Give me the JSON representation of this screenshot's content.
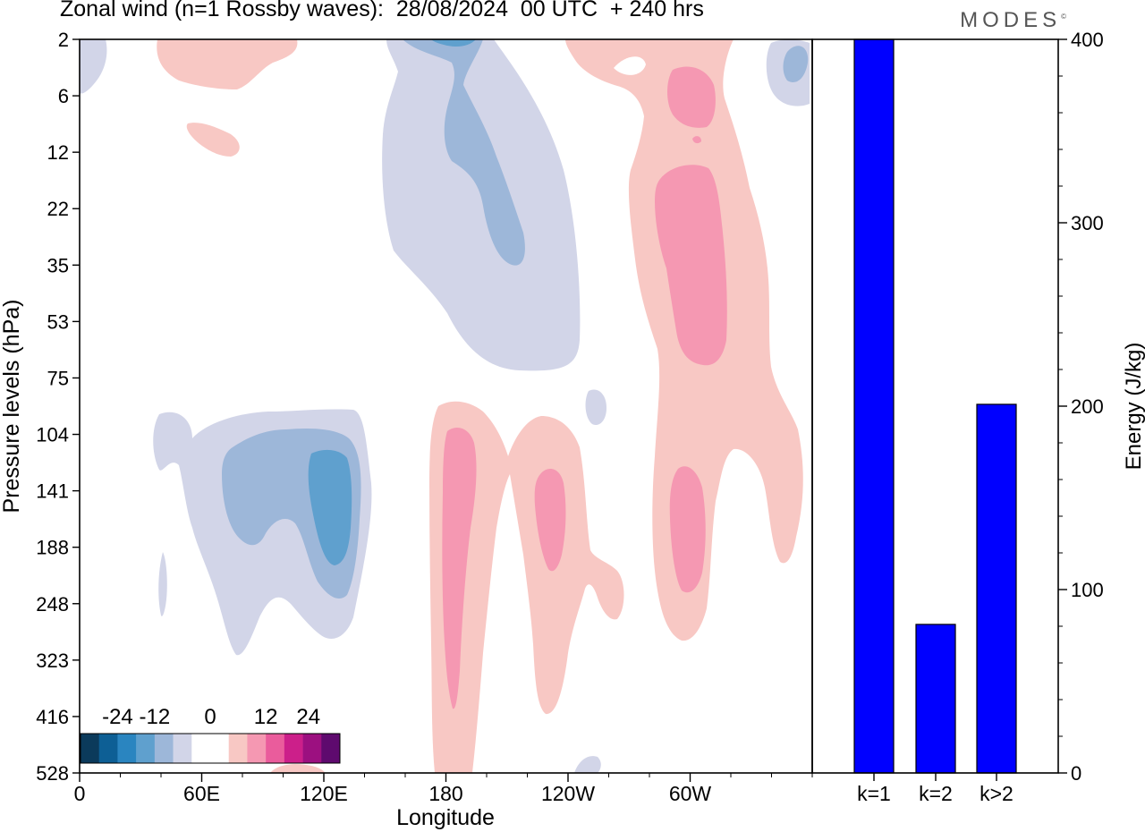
{
  "title": "Zonal wind (n=1 Rossby waves):  28/08/2024  00 UTC  + 240 hrs",
  "brand": "MODES",
  "brand_mark": "©",
  "colors": {
    "neg": [
      "#0b3a5b",
      "#0d5f95",
      "#2a85c0",
      "#5fa0ce",
      "#9db7d9",
      "#d2d5e8"
    ],
    "zero": "#ffffff",
    "pos": [
      "#f8c8c4",
      "#f598b2",
      "#ea5c9c",
      "#cc1f8a",
      "#9c1080",
      "#5e0a6e"
    ],
    "bar": "#0000ff"
  },
  "chart_data": [
    {
      "type": "heatmap",
      "title": "Zonal wind (n=1 Rossby waves):  28/08/2024  00 UTC  + 240 hrs",
      "xlabel": "Longitude",
      "ylabel": "Pressure levels (hPa)",
      "x_ticks": [
        "0",
        "60E",
        "120E",
        "180",
        "120W",
        "60W"
      ],
      "y_ticks": [
        "2",
        "6",
        "12",
        "22",
        "35",
        "53",
        "75",
        "104",
        "141",
        "188",
        "248",
        "323",
        "416",
        "528"
      ],
      "colorbar": {
        "labels": [
          "-24",
          "-12",
          "0",
          "12",
          "24"
        ],
        "levels": [
          -30,
          -24,
          -18,
          -12,
          -6,
          -3,
          3,
          6,
          12,
          18,
          24,
          30
        ]
      },
      "grid": false
    },
    {
      "type": "bar",
      "categories": [
        "k=1",
        "k=2",
        "k>2"
      ],
      "values": [
        400,
        81,
        201
      ],
      "ylabel": "Energy (J/kg)",
      "ylim": [
        0,
        400
      ],
      "y_ticks": [
        "0",
        "100",
        "200",
        "300",
        "400"
      ]
    }
  ]
}
